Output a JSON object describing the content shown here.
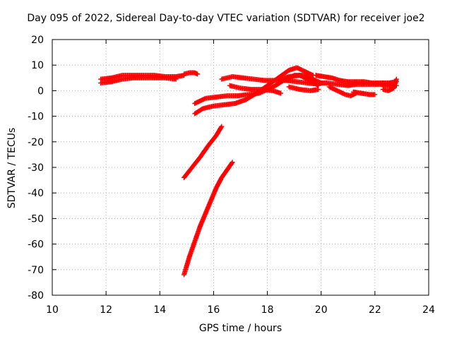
{
  "chart_data": {
    "type": "scatter",
    "title": "Day 095 of 2022, Sidereal Day-to-day VTEC variation (SDTVAR) for receiver joe2",
    "xlabel": "GPS time / hours",
    "ylabel": "SDTVAR / TECUs",
    "xlim": [
      10,
      24
    ],
    "ylim": [
      -80,
      20
    ],
    "xticks": [
      10,
      12,
      14,
      16,
      18,
      20,
      22,
      24
    ],
    "yticks": [
      -80,
      -70,
      -60,
      -50,
      -40,
      -30,
      -20,
      -10,
      0,
      10,
      20
    ],
    "grid": true,
    "marker": "plus",
    "colors": {
      "series": "#ff0000"
    },
    "series": [
      {
        "tracks": [
          {
            "x": [
              11.8,
              12.2,
              12.6,
              13.0,
              13.4,
              13.8,
              14.2,
              14.6,
              14.9
            ],
            "y": [
              4.5,
              5.0,
              6.0,
              6.0,
              6.0,
              6.0,
              5.5,
              5.5,
              6.0
            ]
          },
          {
            "x": [
              11.8,
              12.2,
              12.6,
              13.0,
              13.4,
              13.8,
              14.2,
              14.6
            ],
            "y": [
              3.0,
              3.5,
              4.5,
              5.0,
              5.0,
              5.0,
              5.0,
              4.5
            ]
          },
          {
            "x": [
              14.9,
              15.1,
              15.3,
              15.4
            ],
            "y": [
              6.5,
              7.0,
              7.0,
              6.5
            ]
          },
          {
            "x": [
              15.3,
              15.7,
              16.1,
              16.5,
              16.9,
              17.3,
              17.7,
              18.0,
              18.3,
              18.6,
              19.0,
              19.4,
              19.7,
              20.0
            ],
            "y": [
              -5.0,
              -3.0,
              -2.5,
              -2.0,
              -2.0,
              -1.5,
              -1.0,
              0.5,
              2.0,
              4.0,
              6.0,
              6.0,
              4.5,
              3.0
            ]
          },
          {
            "x": [
              15.3,
              15.6,
              16.0,
              16.4,
              16.8,
              17.2,
              17.6,
              18.0,
              18.4,
              18.8,
              19.1,
              19.4,
              19.7
            ],
            "y": [
              -9.0,
              -7.0,
              -6.0,
              -5.5,
              -5.0,
              -3.5,
              -1.0,
              2.0,
              5.0,
              8.0,
              9.0,
              7.5,
              6.0
            ]
          },
          {
            "x": [
              16.3,
              16.7,
              17.1,
              17.5,
              17.9,
              18.3,
              18.7,
              19.1,
              19.5,
              19.9
            ],
            "y": [
              4.5,
              5.5,
              5.0,
              4.5,
              4.0,
              4.0,
              4.0,
              3.5,
              3.0,
              2.5
            ]
          },
          {
            "x": [
              16.6,
              17.0,
              17.4,
              17.8,
              18.2,
              18.5
            ],
            "y": [
              2.0,
              1.0,
              0.5,
              0.5,
              0.0,
              -1.0
            ]
          },
          {
            "x": [
              18.4,
              18.8,
              19.2,
              19.6,
              19.9
            ],
            "y": [
              4.0,
              5.5,
              6.0,
              4.0,
              2.0
            ]
          },
          {
            "x": [
              18.8,
              19.2,
              19.6,
              19.9
            ],
            "y": [
              1.5,
              0.5,
              0.0,
              0.5
            ]
          },
          {
            "x": [
              19.8,
              20.1,
              20.4,
              20.7,
              21.0,
              21.3,
              21.6,
              21.9,
              22.2,
              22.5,
              22.8
            ],
            "y": [
              6.0,
              5.5,
              5.0,
              4.0,
              3.5,
              3.5,
              3.5,
              3.0,
              3.0,
              3.0,
              3.5
            ]
          },
          {
            "x": [
              19.8,
              20.2,
              20.6,
              21.0,
              21.3,
              21.6,
              21.9,
              22.2,
              22.5,
              22.8
            ],
            "y": [
              3.0,
              3.0,
              2.5,
              2.0,
              2.5,
              2.5,
              2.5,
              2.5,
              2.0,
              2.0
            ]
          },
          {
            "x": [
              20.3,
              20.6,
              20.9,
              21.1,
              21.3
            ],
            "y": [
              1.5,
              0.0,
              -1.5,
              -2.0,
              -1.0
            ]
          },
          {
            "x": [
              21.2,
              21.5,
              21.8,
              22.0
            ],
            "y": [
              -0.5,
              -1.0,
              -1.5,
              -1.5
            ]
          },
          {
            "x": [
              22.3,
              22.5,
              22.7,
              22.8
            ],
            "y": [
              0.5,
              0.0,
              1.0,
              4.5
            ]
          },
          {
            "x": [
              14.9,
              15.2,
              15.5,
              15.8,
              16.1,
              16.3
            ],
            "y": [
              -34.0,
              -30.0,
              -26.0,
              -21.5,
              -17.5,
              -14.0
            ]
          },
          {
            "x": [
              14.9,
              15.1,
              15.3,
              15.5,
              15.7,
              15.9,
              16.1,
              16.3,
              16.5,
              16.7
            ],
            "y": [
              -72.0,
              -65.0,
              -59.0,
              -53.0,
              -48.0,
              -43.0,
              -38.0,
              -34.0,
              -31.0,
              -28.0
            ]
          }
        ]
      }
    ]
  }
}
